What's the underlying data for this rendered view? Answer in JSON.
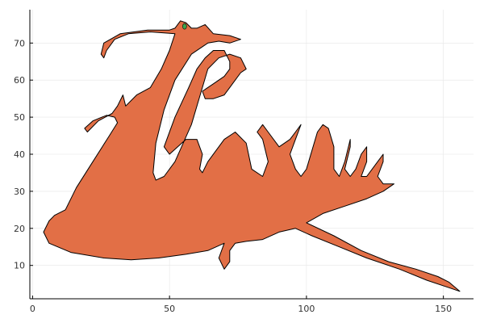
{
  "chart_data": {
    "type": "area",
    "title": "",
    "xlabel": "",
    "ylabel": "",
    "xlim": [
      -1,
      161
    ],
    "ylim": [
      1,
      79
    ],
    "xticks": [
      0,
      50,
      100,
      150
    ],
    "yticks": [
      10,
      20,
      30,
      40,
      50,
      60,
      70
    ],
    "grid": true,
    "legend": "none",
    "colors": {
      "fill": "#e26f46",
      "stroke": "#000000",
      "accent": "#3da44d",
      "grid": "#e6e6e6",
      "axis": "#000000"
    },
    "series": [
      {
        "fill": "#e26f46",
        "points": [
          [
            4,
            19
          ],
          [
            6,
            22
          ],
          [
            8,
            23.5
          ],
          [
            12,
            25
          ],
          [
            16,
            31
          ],
          [
            22,
            38
          ],
          [
            28,
            45
          ],
          [
            31,
            48.5
          ],
          [
            30,
            50
          ],
          [
            27,
            50.5
          ],
          [
            22,
            49
          ],
          [
            19,
            47
          ],
          [
            20,
            46
          ],
          [
            24,
            49
          ],
          [
            29,
            51
          ],
          [
            31,
            53
          ],
          [
            33,
            56
          ],
          [
            34,
            53
          ],
          [
            38,
            56
          ],
          [
            43,
            58
          ],
          [
            47,
            63
          ],
          [
            50,
            68
          ],
          [
            52,
            72.5
          ],
          [
            43,
            73
          ],
          [
            35,
            72.5
          ],
          [
            30,
            71
          ],
          [
            27,
            68
          ],
          [
            26,
            66
          ],
          [
            25,
            67
          ],
          [
            26,
            70
          ],
          [
            32,
            72.5
          ],
          [
            42,
            73.5
          ],
          [
            50,
            73.5
          ],
          [
            52,
            74
          ],
          [
            54,
            76
          ],
          [
            56,
            75.5
          ],
          [
            58,
            74
          ],
          [
            60,
            74
          ],
          [
            63,
            75
          ],
          [
            66,
            72.5
          ],
          [
            72,
            72
          ],
          [
            76,
            71
          ],
          [
            72,
            70
          ],
          [
            68,
            70.5
          ],
          [
            64,
            70
          ],
          [
            58,
            67
          ],
          [
            52,
            60
          ],
          [
            48,
            52
          ],
          [
            45,
            43
          ],
          [
            44,
            35
          ],
          [
            45,
            33
          ],
          [
            48,
            34
          ],
          [
            52,
            38
          ],
          [
            58,
            48
          ],
          [
            62,
            58
          ],
          [
            64,
            63
          ],
          [
            68,
            66
          ],
          [
            72,
            67
          ],
          [
            76,
            66
          ],
          [
            78,
            63
          ],
          [
            76,
            62
          ],
          [
            74,
            60
          ],
          [
            72,
            58
          ],
          [
            70,
            56
          ],
          [
            66,
            55
          ],
          [
            63,
            55
          ],
          [
            62,
            57
          ],
          [
            66,
            59
          ],
          [
            70,
            61
          ],
          [
            72,
            63
          ],
          [
            72,
            65
          ],
          [
            70,
            68
          ],
          [
            66,
            68
          ],
          [
            63,
            66
          ],
          [
            60,
            63
          ],
          [
            57,
            58
          ],
          [
            52,
            50
          ],
          [
            48,
            42
          ],
          [
            50,
            40
          ],
          [
            56,
            44
          ],
          [
            60,
            44
          ],
          [
            62,
            40
          ],
          [
            61,
            36
          ],
          [
            62,
            35
          ],
          [
            64,
            38
          ],
          [
            70,
            44
          ],
          [
            74,
            46
          ],
          [
            78,
            43
          ],
          [
            80,
            36
          ],
          [
            84,
            34
          ],
          [
            86,
            38
          ],
          [
            84,
            44
          ],
          [
            82,
            46
          ],
          [
            84,
            48
          ],
          [
            86,
            46
          ],
          [
            90,
            42
          ],
          [
            94,
            44
          ],
          [
            96,
            46
          ],
          [
            98,
            48
          ],
          [
            96,
            44
          ],
          [
            94,
            40
          ],
          [
            96,
            36
          ],
          [
            98,
            34
          ],
          [
            100,
            36
          ],
          [
            104,
            46
          ],
          [
            106,
            48
          ],
          [
            108,
            47
          ],
          [
            110,
            42
          ],
          [
            110,
            36
          ],
          [
            112,
            34
          ],
          [
            114,
            38
          ],
          [
            116,
            44
          ],
          [
            116,
            42
          ],
          [
            114,
            36
          ],
          [
            116,
            34
          ],
          [
            118,
            36
          ],
          [
            120,
            40
          ],
          [
            122,
            42
          ],
          [
            122,
            38
          ],
          [
            120,
            34
          ],
          [
            122,
            34
          ],
          [
            126,
            38
          ],
          [
            128,
            40
          ],
          [
            128,
            38
          ],
          [
            126,
            34
          ],
          [
            128,
            32
          ],
          [
            132,
            32
          ],
          [
            128,
            30
          ],
          [
            122,
            28
          ],
          [
            114,
            26
          ],
          [
            106,
            24
          ],
          [
            100,
            21.5
          ],
          [
            110,
            18
          ],
          [
            120,
            14
          ],
          [
            130,
            11
          ],
          [
            140,
            9
          ],
          [
            148,
            7
          ],
          [
            152,
            5.5
          ],
          [
            156,
            3
          ],
          [
            152,
            4
          ],
          [
            144,
            6
          ],
          [
            134,
            9
          ],
          [
            122,
            12
          ],
          [
            112,
            15
          ],
          [
            102,
            18
          ],
          [
            96,
            20
          ],
          [
            90,
            19
          ],
          [
            84,
            17
          ],
          [
            78,
            16.5
          ],
          [
            74,
            16
          ],
          [
            72,
            14
          ],
          [
            72,
            11
          ],
          [
            70,
            9
          ],
          [
            68,
            12
          ],
          [
            70,
            16
          ],
          [
            64,
            14
          ],
          [
            56,
            13
          ],
          [
            46,
            12
          ],
          [
            36,
            11.5
          ],
          [
            26,
            12
          ],
          [
            14,
            13.5
          ],
          [
            6,
            16
          ],
          [
            4,
            19
          ]
        ]
      }
    ],
    "small_mark": {
      "color": "#3da44d",
      "x": 55.5,
      "y": 74.5
    }
  }
}
